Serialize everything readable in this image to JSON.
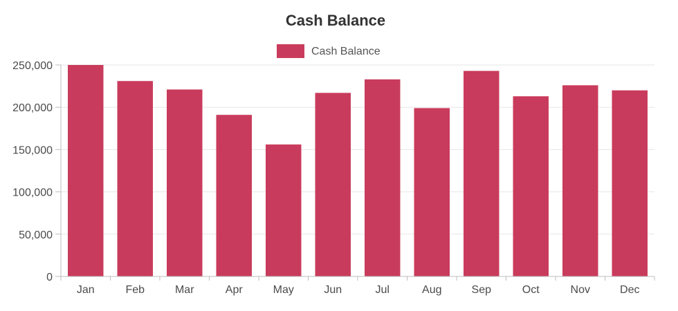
{
  "chart_data": {
    "type": "bar",
    "title": "Cash Balance",
    "categories": [
      "Jan",
      "Feb",
      "Mar",
      "Apr",
      "May",
      "Jun",
      "Jul",
      "Aug",
      "Sep",
      "Oct",
      "Nov",
      "Dec"
    ],
    "series": [
      {
        "name": "Cash Balance",
        "color": "#c93b5c",
        "values": [
          250000,
          231000,
          221000,
          191000,
          156000,
          217000,
          233000,
          199000,
          243000,
          213000,
          226000,
          220000
        ]
      }
    ],
    "ylim": [
      0,
      250000
    ],
    "yticks": [
      0,
      50000,
      100000,
      150000,
      200000,
      250000
    ],
    "ytick_labels": [
      "0",
      "50,000",
      "100,000",
      "150,000",
      "200,000",
      "250,000"
    ],
    "xlabel": "",
    "ylabel": "",
    "grid": true,
    "legend_position": "top-center"
  }
}
